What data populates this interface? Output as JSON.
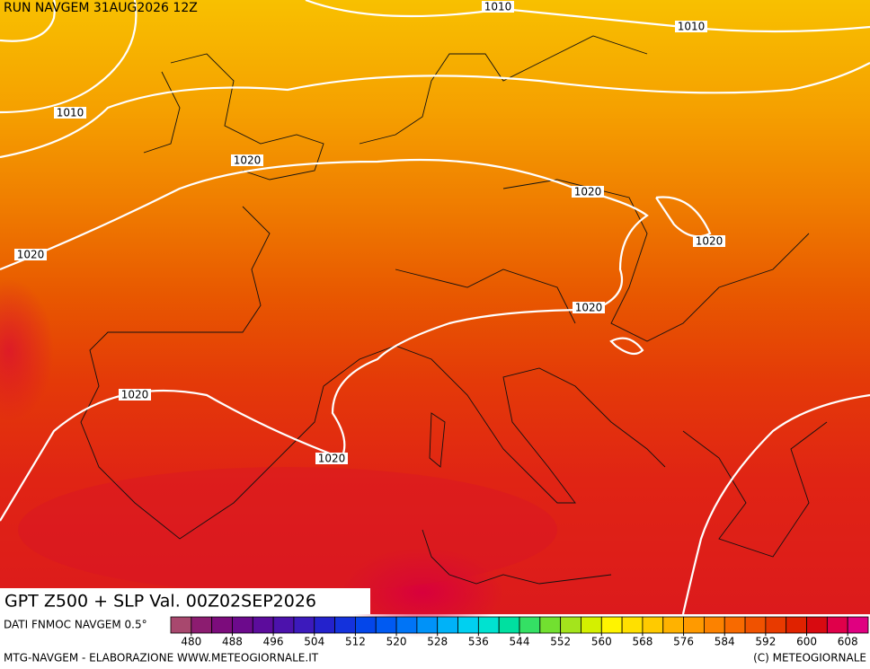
{
  "header": {
    "run": "RUN NAVGEM 31AUG2026 12Z"
  },
  "isobar_labels": [
    "1010",
    "1010",
    "1010",
    "1020",
    "1020",
    "1020",
    "1020",
    "1020",
    "1020",
    "1020",
    "1020"
  ],
  "footer": {
    "title": "GPT Z500 + SLP Val. 00Z02SEP2026",
    "source": "DATI FNMOC NAVGEM 0.5°",
    "credit": "MTG-NAVGEM - ELABORAZIONE WWW.METEOGIORNALE.IT",
    "copyright": "(C) METEOGIORNALE"
  },
  "colorbar": {
    "range": [
      476,
      612
    ],
    "ticks": [
      480,
      488,
      496,
      504,
      512,
      520,
      528,
      536,
      544,
      552,
      560,
      568,
      576,
      584,
      592,
      600,
      608
    ],
    "colors": [
      "#a8486e",
      "#8c1c70",
      "#7c0c7c",
      "#6c0a8c",
      "#5c0c9c",
      "#4c12ac",
      "#3c1abc",
      "#2422cc",
      "#1432dc",
      "#0446ea",
      "#005af2",
      "#0074f6",
      "#0092f8",
      "#00b2f8",
      "#00d0f0",
      "#00e2d0",
      "#00e0a0",
      "#34e064",
      "#72e030",
      "#a4e41c",
      "#d4f000",
      "#fff400",
      "#ffe000",
      "#ffca00",
      "#ffb200",
      "#ff9a00",
      "#fc8200",
      "#f86a00",
      "#f05200",
      "#e83a00",
      "#e02200",
      "#d80a10",
      "#e0004a",
      "#e00080"
    ]
  }
}
